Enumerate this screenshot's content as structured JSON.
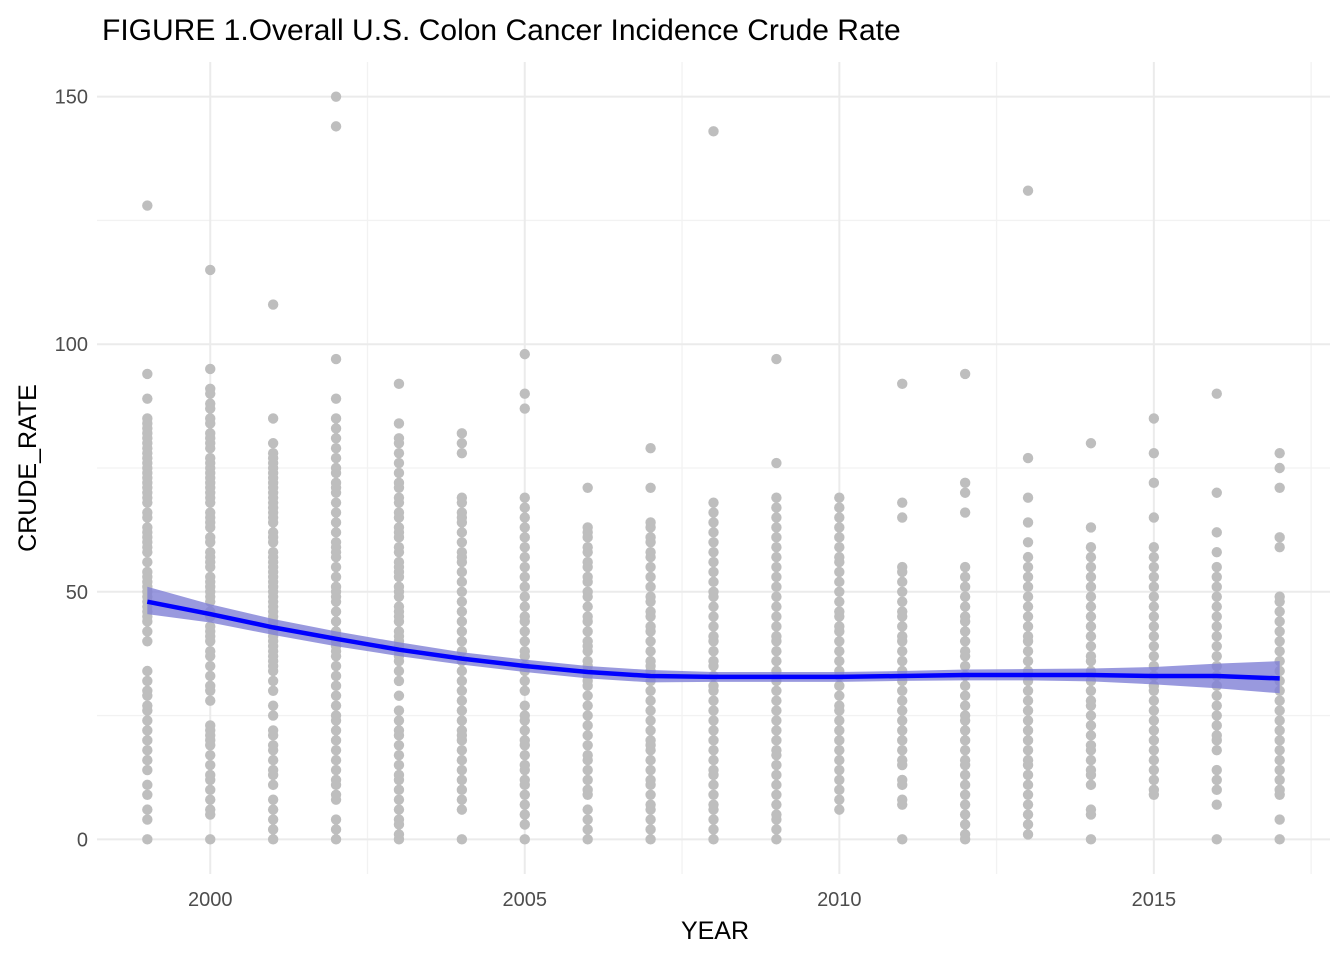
{
  "chart_data": {
    "type": "scatter",
    "title": "FIGURE 1.Overall U.S. Colon Cancer Incidence Crude Rate",
    "xlabel": "YEAR",
    "ylabel": "CRUDE_RATE",
    "xlim": [
      1998.2,
      2017.8
    ],
    "ylim": [
      -7,
      157
    ],
    "x_ticks": [
      2000,
      2005,
      2010,
      2015
    ],
    "y_ticks": [
      0,
      50,
      100,
      150
    ],
    "grid": true,
    "legend": "none",
    "colors": {
      "points": "#bebebe",
      "trend_line": "#0000ff",
      "confidence_band": "#7f7fd6"
    },
    "points": [
      {
        "x": 1999,
        "y": [
          0,
          4,
          6,
          9,
          11,
          14,
          16,
          18,
          20,
          22,
          24,
          26,
          27,
          29,
          30,
          32,
          34,
          40,
          42,
          44,
          45,
          46,
          47,
          48,
          49,
          50,
          51,
          52,
          53,
          54,
          56,
          58,
          59,
          60,
          61,
          62,
          63,
          65,
          66,
          68,
          69,
          70,
          71,
          72,
          73,
          74,
          75,
          76,
          77,
          78,
          79,
          80,
          81,
          82,
          83,
          84,
          85,
          89,
          94,
          128
        ]
      },
      {
        "x": 2000,
        "y": [
          0,
          5,
          6,
          8,
          10,
          12,
          13,
          15,
          17,
          19,
          20,
          21,
          22,
          23,
          28,
          30,
          31,
          33,
          35,
          37,
          38,
          40,
          41,
          42,
          43,
          45,
          46,
          48,
          49,
          50,
          51,
          52,
          53,
          55,
          56,
          57,
          58,
          60,
          61,
          63,
          64,
          65,
          66,
          68,
          69,
          70,
          71,
          72,
          73,
          74,
          75,
          76,
          77,
          79,
          80,
          81,
          82,
          84,
          85,
          87,
          88,
          90,
          91,
          95,
          115
        ]
      },
      {
        "x": 2001,
        "y": [
          0,
          2,
          4,
          6,
          8,
          11,
          13,
          14,
          16,
          18,
          19,
          21,
          22,
          25,
          27,
          30,
          32,
          34,
          35,
          36,
          37,
          38,
          39,
          40,
          41,
          42,
          43,
          44,
          45,
          46,
          47,
          48,
          49,
          50,
          51,
          52,
          53,
          54,
          55,
          56,
          57,
          58,
          60,
          61,
          62,
          64,
          65,
          66,
          67,
          68,
          69,
          70,
          71,
          72,
          73,
          74,
          75,
          76,
          77,
          78,
          80,
          85,
          108
        ]
      },
      {
        "x": 2002,
        "y": [
          0,
          2,
          4,
          8,
          9,
          11,
          12,
          14,
          16,
          18,
          20,
          22,
          24,
          25,
          27,
          29,
          31,
          33,
          35,
          37,
          38,
          39,
          40,
          41,
          42,
          44,
          46,
          48,
          49,
          50,
          51,
          53,
          55,
          57,
          58,
          59,
          60,
          62,
          64,
          66,
          68,
          70,
          71,
          72,
          74,
          75,
          77,
          79,
          81,
          83,
          85,
          89,
          97,
          144,
          150
        ]
      },
      {
        "x": 2003,
        "y": [
          0,
          1,
          3,
          4,
          6,
          8,
          10,
          12,
          13,
          15,
          17,
          19,
          21,
          22,
          24,
          26,
          29,
          32,
          34,
          36,
          37,
          38,
          39,
          40,
          41,
          42,
          44,
          45,
          46,
          47,
          49,
          50,
          51,
          53,
          54,
          55,
          56,
          58,
          59,
          61,
          62,
          63,
          65,
          66,
          68,
          69,
          71,
          72,
          74,
          76,
          78,
          80,
          81,
          84,
          92
        ]
      },
      {
        "x": 2004,
        "y": [
          0,
          6,
          8,
          10,
          12,
          14,
          16,
          18,
          20,
          21,
          22,
          24,
          26,
          28,
          30,
          32,
          34,
          36,
          38,
          40,
          42,
          44,
          46,
          48,
          50,
          52,
          54,
          56,
          57,
          58,
          60,
          62,
          64,
          65,
          66,
          68,
          69,
          78,
          80,
          82
        ]
      },
      {
        "x": 2005,
        "y": [
          0,
          3,
          5,
          7,
          9,
          11,
          12,
          14,
          15,
          17,
          19,
          20,
          22,
          24,
          25,
          27,
          30,
          32,
          34,
          35,
          37,
          38,
          40,
          42,
          44,
          45,
          47,
          49,
          51,
          53,
          55,
          57,
          59,
          61,
          63,
          65,
          67,
          69,
          87,
          90,
          98
        ]
      },
      {
        "x": 2006,
        "y": [
          0,
          2,
          4,
          6,
          9,
          10,
          12,
          14,
          16,
          17,
          19,
          21,
          23,
          25,
          27,
          29,
          31,
          32,
          33,
          34,
          35,
          36,
          38,
          39,
          40,
          42,
          44,
          45,
          47,
          49,
          50,
          52,
          53,
          55,
          56,
          58,
          59,
          61,
          62,
          63,
          71
        ]
      },
      {
        "x": 2007,
        "y": [
          0,
          2,
          4,
          6,
          7,
          9,
          11,
          12,
          14,
          16,
          18,
          19,
          20,
          22,
          24,
          26,
          28,
          30,
          32,
          34,
          35,
          36,
          38,
          40,
          42,
          43,
          45,
          46,
          48,
          49,
          51,
          53,
          55,
          57,
          58,
          60,
          61,
          63,
          64,
          71,
          79
        ]
      },
      {
        "x": 2008,
        "y": [
          0,
          2,
          4,
          6,
          7,
          9,
          11,
          13,
          14,
          16,
          18,
          20,
          22,
          24,
          26,
          28,
          30,
          31,
          33,
          35,
          36,
          38,
          40,
          41,
          43,
          45,
          47,
          49,
          50,
          52,
          54,
          56,
          58,
          60,
          62,
          64,
          66,
          68,
          143
        ]
      },
      {
        "x": 2009,
        "y": [
          0,
          2,
          4,
          5,
          7,
          9,
          11,
          13,
          15,
          17,
          18,
          20,
          22,
          24,
          26,
          28,
          30,
          32,
          34,
          36,
          38,
          40,
          41,
          43,
          45,
          47,
          49,
          51,
          53,
          55,
          57,
          59,
          61,
          63,
          65,
          67,
          69,
          76,
          97
        ]
      },
      {
        "x": 2010,
        "y": [
          6,
          8,
          10,
          12,
          14,
          16,
          18,
          20,
          22,
          24,
          26,
          27,
          29,
          31,
          33,
          34,
          36,
          38,
          40,
          42,
          43,
          45,
          46,
          48,
          50,
          52,
          54,
          56,
          57,
          59,
          61,
          63,
          65,
          67,
          69
        ]
      },
      {
        "x": 2011,
        "y": [
          0,
          7,
          8,
          11,
          12,
          15,
          16,
          18,
          20,
          22,
          24,
          26,
          28,
          30,
          32,
          34,
          36,
          38,
          40,
          41,
          43,
          45,
          46,
          48,
          50,
          52,
          54,
          55,
          65,
          68,
          92
        ]
      },
      {
        "x": 2012,
        "y": [
          0,
          1,
          3,
          5,
          7,
          9,
          11,
          13,
          15,
          16,
          18,
          20,
          22,
          24,
          25,
          27,
          29,
          31,
          33,
          35,
          37,
          38,
          40,
          42,
          44,
          45,
          47,
          49,
          51,
          53,
          55,
          66,
          70,
          72,
          94
        ]
      },
      {
        "x": 2013,
        "y": [
          1,
          3,
          5,
          7,
          9,
          11,
          13,
          15,
          16,
          18,
          20,
          22,
          24,
          26,
          28,
          30,
          32,
          34,
          36,
          38,
          40,
          41,
          43,
          45,
          47,
          49,
          51,
          53,
          55,
          57,
          60,
          64,
          69,
          77,
          131
        ]
      },
      {
        "x": 2014,
        "y": [
          0,
          5,
          6,
          11,
          13,
          14,
          16,
          18,
          19,
          21,
          23,
          25,
          27,
          28,
          30,
          32,
          34,
          36,
          37,
          39,
          41,
          43,
          45,
          47,
          49,
          51,
          53,
          55,
          57,
          59,
          63,
          80
        ]
      },
      {
        "x": 2015,
        "y": [
          9,
          10,
          12,
          14,
          16,
          18,
          20,
          22,
          24,
          26,
          28,
          30,
          31,
          33,
          35,
          37,
          39,
          41,
          43,
          45,
          47,
          49,
          51,
          53,
          55,
          57,
          59,
          65,
          72,
          78,
          85
        ]
      },
      {
        "x": 2016,
        "y": [
          0,
          7,
          10,
          12,
          14,
          18,
          20,
          21,
          23,
          25,
          27,
          29,
          31,
          33,
          35,
          37,
          39,
          41,
          43,
          45,
          47,
          49,
          51,
          53,
          55,
          58,
          62,
          70,
          90
        ]
      },
      {
        "x": 2017,
        "y": [
          0,
          4,
          9,
          10,
          12,
          14,
          16,
          18,
          20,
          22,
          24,
          26,
          28,
          30,
          32,
          34,
          36,
          38,
          40,
          42,
          44,
          46,
          48,
          49,
          59,
          61,
          71,
          75,
          78
        ]
      }
    ],
    "smooth": {
      "x": [
        1999,
        2000,
        2001,
        2002,
        2003,
        2004,
        2005,
        2006,
        2007,
        2008,
        2009,
        2010,
        2011,
        2012,
        2013,
        2014,
        2015,
        2016,
        2017
      ],
      "y": [
        48,
        45.5,
        42.8,
        40.5,
        38.3,
        36.5,
        35,
        33.8,
        33,
        32.8,
        32.8,
        32.8,
        33,
        33.2,
        33.2,
        33.2,
        33,
        33,
        32.5
      ],
      "lower": [
        45.5,
        43.8,
        41.3,
        39,
        37,
        35.3,
        33.8,
        32.5,
        31.7,
        31.8,
        31.8,
        31.8,
        32,
        32.1,
        32.1,
        31.9,
        31.3,
        30.5,
        29.5
      ],
      "upper": [
        51,
        47.5,
        44.5,
        42,
        39.8,
        37.8,
        36.3,
        35,
        34.2,
        33.8,
        33.8,
        33.8,
        34,
        34.3,
        34.4,
        34.5,
        34.8,
        35.5,
        36
      ]
    }
  }
}
